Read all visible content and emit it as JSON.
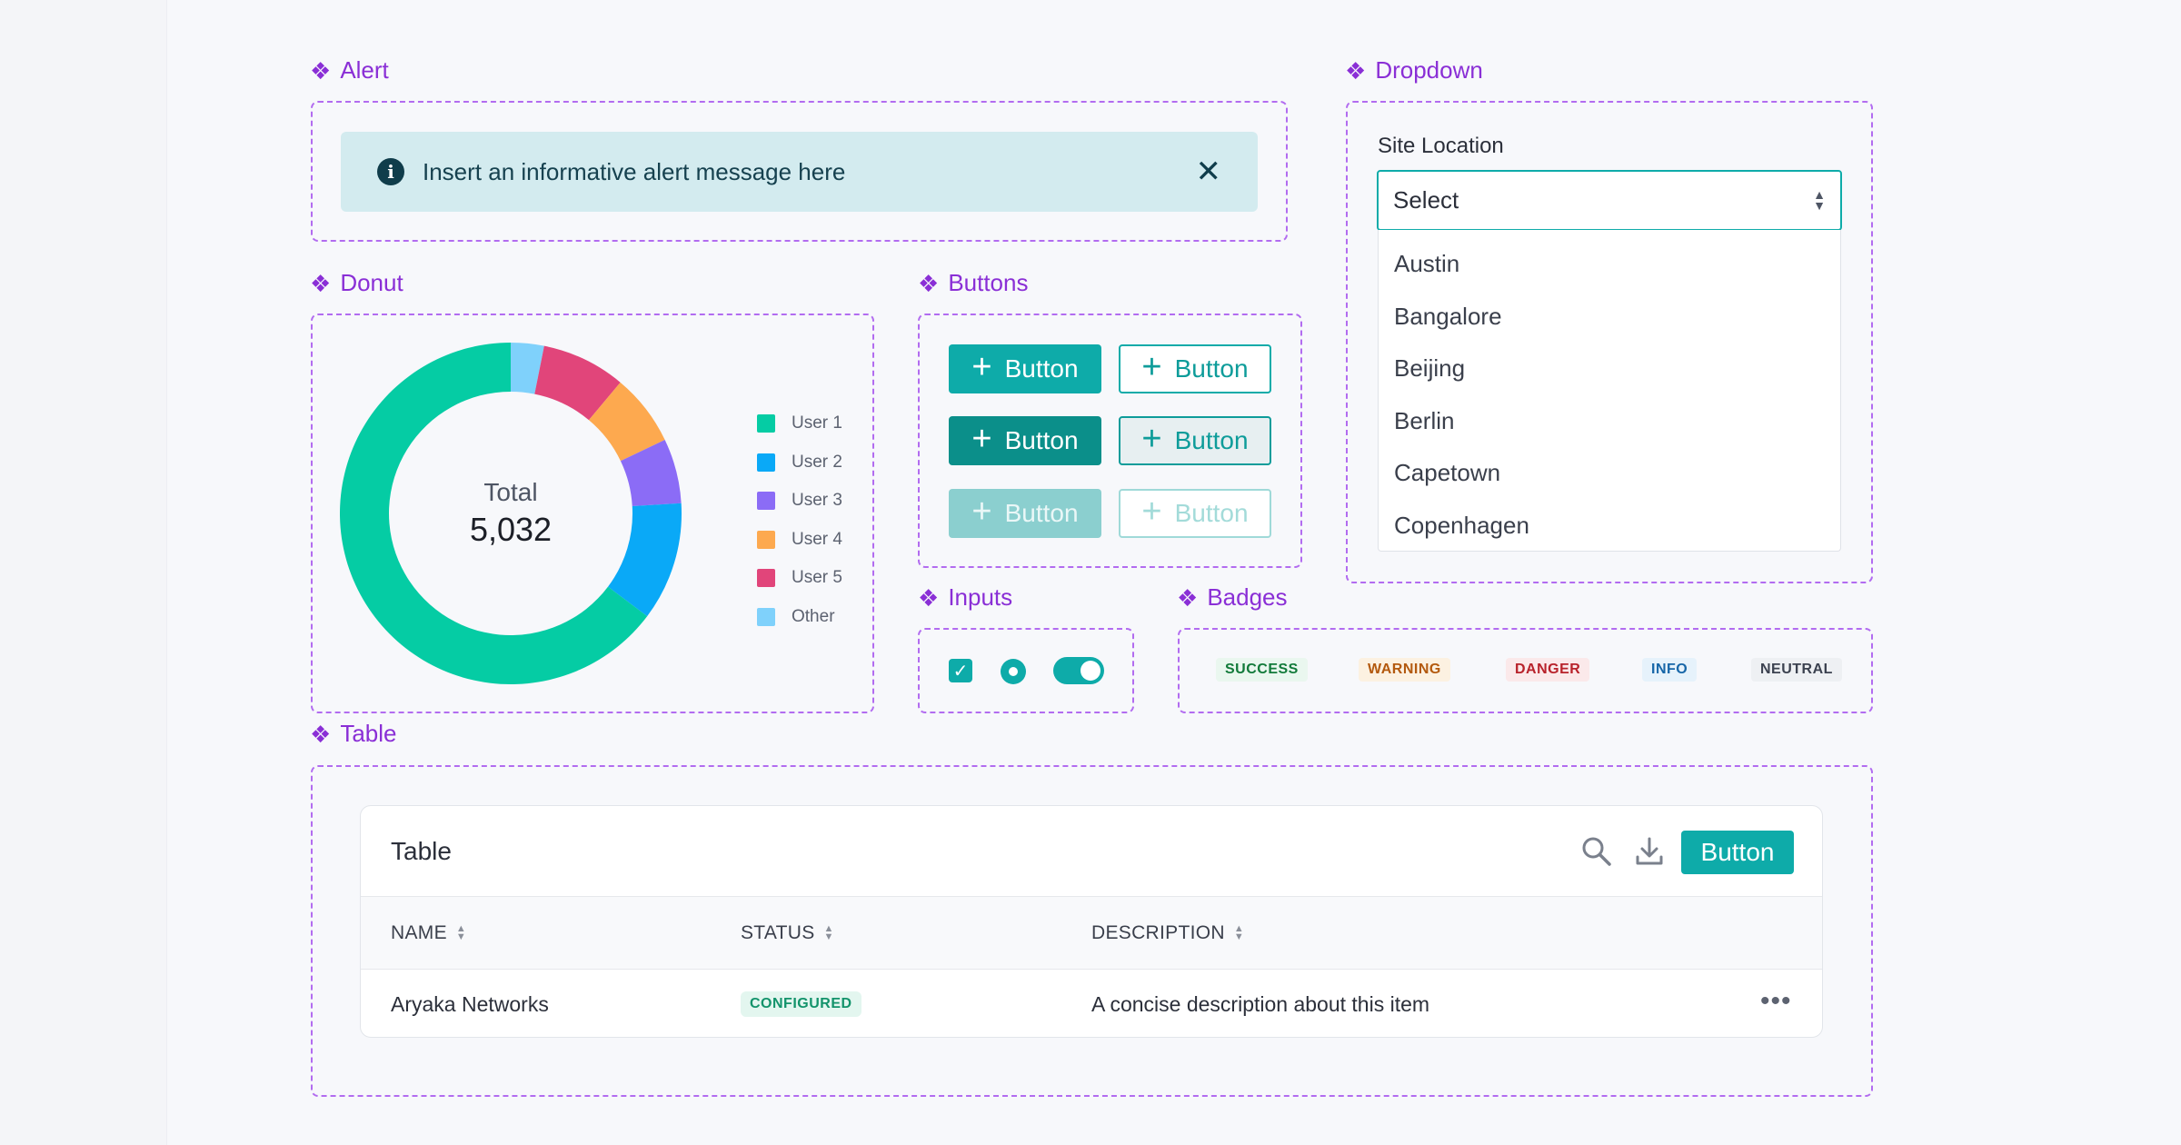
{
  "sections": {
    "alert": "Alert",
    "dropdown": "Dropdown",
    "donut": "Donut",
    "buttons": "Buttons",
    "inputs": "Inputs",
    "badges": "Badges",
    "table": "Table"
  },
  "section_icon": "❖",
  "alert": {
    "message": "Insert an informative alert message here",
    "icon": "info-icon",
    "close_icon": "close-icon"
  },
  "donut": {
    "center_label": "Total",
    "center_value": "5,032",
    "legend": [
      {
        "label": "User 1",
        "color": "#05cca4"
      },
      {
        "label": "User 2",
        "color": "#0aa9f7"
      },
      {
        "label": "User 3",
        "color": "#8b6cf6"
      },
      {
        "label": "User 4",
        "color": "#fda94f"
      },
      {
        "label": "User 5",
        "color": "#e1457a"
      },
      {
        "label": "Other",
        "color": "#7fd1fb"
      }
    ]
  },
  "chart_data": {
    "type": "pie",
    "categories": [
      "User 1",
      "User 2",
      "User 3",
      "User 4",
      "User 5",
      "Other"
    ],
    "values": [
      3257,
      565,
      309,
      343,
      400,
      158
    ],
    "center_label": "Total",
    "center_value": "5,032"
  },
  "buttons": {
    "label": "Button",
    "icon": "plus-icon"
  },
  "badges": [
    "SUCCESS",
    "WARNING",
    "DANGER",
    "INFO",
    "NEUTRAL"
  ],
  "dropdown": {
    "label": "Site Location",
    "placeholder": "Select",
    "options": [
      "Austin",
      "Bangalore",
      "Beijing",
      "Berlin",
      "Capetown",
      "Copenhagen"
    ]
  },
  "table": {
    "title": "Table",
    "button_label": "Button",
    "columns": [
      "NAME",
      "STATUS",
      "DESCRIPTION"
    ],
    "rows": [
      {
        "name": "Aryaka Networks",
        "status": "CONFIGURED",
        "description": "A concise description about this item"
      }
    ],
    "more_icon": "•••"
  },
  "colors": {
    "accent": "#0eaba9",
    "section_purple": "#8a2fd6",
    "frame_dash": "#b26cf0"
  }
}
